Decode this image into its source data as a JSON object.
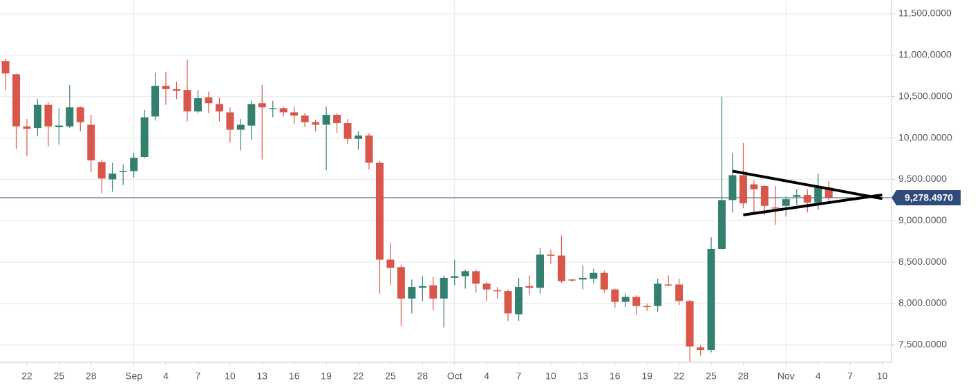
{
  "chart_data": {
    "type": "candlestick",
    "categories": [
      null,
      null,
      "22",
      null,
      null,
      "25",
      null,
      null,
      "28",
      null,
      null,
      null,
      "Sep",
      null,
      null,
      "4",
      null,
      null,
      "7",
      null,
      null,
      "10",
      null,
      null,
      "13",
      null,
      null,
      "16",
      null,
      null,
      "19",
      null,
      null,
      "22",
      null,
      null,
      "25",
      null,
      null,
      "28",
      null,
      null,
      "Oct",
      null,
      null,
      "4",
      null,
      null,
      "7",
      null,
      null,
      "10",
      null,
      null,
      "13",
      null,
      null,
      "16",
      null,
      null,
      "19",
      null,
      null,
      "22",
      null,
      null,
      "25",
      null,
      null,
      "28",
      null,
      null,
      null,
      "Nov",
      null,
      null,
      "4",
      null,
      null,
      "7",
      null,
      null,
      "10"
    ],
    "open": [
      10930,
      10770,
      10140,
      10120,
      10400,
      10130,
      10140,
      10370,
      10160,
      9710,
      9500,
      9590,
      9600,
      9770,
      10260,
      10630,
      10590,
      10580,
      10320,
      10490,
      10410,
      10310,
      10100,
      10150,
      10420,
      10360,
      10360,
      10310,
      10270,
      10190,
      10160,
      10280,
      10180,
      9990,
      10030,
      9700,
      8530,
      8440,
      8060,
      8190,
      8220,
      8060,
      8310,
      8330,
      8390,
      8240,
      8160,
      8150,
      7870,
      8210,
      8190,
      8590,
      8580,
      8290,
      8290,
      8300,
      8370,
      8170,
      8020,
      8080,
      7970,
      7970,
      8230,
      8230,
      8030,
      7470,
      7440,
      8660,
      9250,
      9550,
      9440,
      9420,
      9160,
      9180,
      9290,
      9310,
      9220,
      9400,
      null,
      null,
      null,
      null,
      null
    ],
    "high": [
      10960,
      10780,
      10230,
      10470,
      10430,
      10360,
      10640,
      10380,
      10280,
      9730,
      9700,
      9680,
      9820,
      10340,
      10790,
      10800,
      10680,
      10950,
      10580,
      10560,
      10490,
      10370,
      10230,
      10450,
      10640,
      10450,
      10380,
      10380,
      10300,
      10220,
      10380,
      10300,
      10230,
      10080,
      10060,
      9720,
      8730,
      8470,
      8290,
      8330,
      8320,
      8340,
      8530,
      8410,
      8410,
      8260,
      8200,
      8170,
      8310,
      8340,
      8670,
      8650,
      8820,
      8300,
      8460,
      8420,
      8400,
      8180,
      8120,
      8100,
      8000,
      8300,
      8340,
      8300,
      8040,
      7500,
      8800,
      10500,
      9820,
      9940,
      9490,
      9430,
      9420,
      9290,
      9380,
      9380,
      9570,
      9480,
      null,
      null,
      null,
      null,
      null
    ],
    "low": [
      10580,
      9870,
      9780,
      10020,
      9900,
      9920,
      10120,
      10080,
      9590,
      9330,
      9350,
      9430,
      9520,
      9760,
      10210,
      10400,
      10470,
      10200,
      10300,
      10300,
      10200,
      9940,
      9850,
      9980,
      9740,
      10250,
      10260,
      10170,
      10130,
      10080,
      9610,
      10060,
      9930,
      9860,
      9620,
      8120,
      8220,
      7730,
      7880,
      8030,
      7920,
      7710,
      8220,
      8180,
      8130,
      8030,
      8060,
      7790,
      7790,
      8100,
      8120,
      8480,
      8250,
      8260,
      8170,
      8240,
      8130,
      7950,
      7960,
      7870,
      7910,
      7900,
      8210,
      7980,
      7300,
      7370,
      7410,
      8650,
      9100,
      9150,
      9100,
      9070,
      8950,
      9050,
      9190,
      9100,
      9130,
      9200,
      null,
      null,
      null,
      null,
      null
    ],
    "close": [
      10780,
      10140,
      10110,
      10400,
      10140,
      10150,
      10370,
      10190,
      9730,
      9510,
      9570,
      9600,
      9760,
      10250,
      10630,
      10590,
      10570,
      10320,
      10480,
      10420,
      10320,
      10100,
      10160,
      10410,
      10370,
      10360,
      10310,
      10270,
      10190,
      10160,
      10280,
      10180,
      9990,
      10030,
      9700,
      8530,
      8430,
      8060,
      8200,
      8210,
      8060,
      8310,
      8330,
      8390,
      8240,
      8170,
      8150,
      7880,
      8200,
      8190,
      8590,
      8580,
      8270,
      8280,
      8310,
      8370,
      8170,
      8020,
      8080,
      7970,
      7960,
      8240,
      8220,
      8030,
      7480,
      7440,
      8660,
      9250,
      9550,
      9210,
      9380,
      9180,
      9150,
      9260,
      9310,
      9220,
      9400,
      9280,
      null,
      null,
      null,
      null,
      null
    ],
    "up_color": "#34806f",
    "down_color": "#d9574a",
    "lines": [
      {
        "color": "#000000",
        "values": [
          null,
          null,
          null,
          null,
          null,
          null,
          null,
          null,
          null,
          null,
          null,
          null,
          null,
          null,
          null,
          null,
          null,
          null,
          null,
          null,
          null,
          null,
          null,
          null,
          null,
          null,
          null,
          null,
          null,
          null,
          null,
          null,
          null,
          null,
          null,
          null,
          null,
          null,
          null,
          null,
          null,
          null,
          null,
          null,
          null,
          null,
          null,
          null,
          null,
          null,
          null,
          null,
          null,
          null,
          null,
          null,
          null,
          null,
          null,
          null,
          null,
          null,
          null,
          null,
          null,
          null,
          null,
          null,
          9600,
          9576,
          9552,
          9529,
          9505,
          9481,
          9457,
          9433,
          9410,
          9386,
          9362,
          9338,
          9314,
          9291,
          9267
        ]
      },
      {
        "color": "#000000",
        "values": [
          null,
          null,
          null,
          null,
          null,
          null,
          null,
          null,
          null,
          null,
          null,
          null,
          null,
          null,
          null,
          null,
          null,
          null,
          null,
          null,
          null,
          null,
          null,
          null,
          null,
          null,
          null,
          null,
          null,
          null,
          null,
          null,
          null,
          null,
          null,
          null,
          null,
          null,
          null,
          null,
          null,
          null,
          null,
          null,
          null,
          null,
          null,
          null,
          null,
          null,
          null,
          null,
          null,
          null,
          null,
          null,
          null,
          null,
          null,
          null,
          null,
          null,
          null,
          null,
          null,
          null,
          null,
          null,
          null,
          9070,
          9089,
          9107,
          9126,
          9145,
          9163,
          9182,
          9201,
          9219,
          9238,
          9257,
          9275,
          9294,
          9312
        ]
      }
    ],
    "last_price": {
      "value": 9278.497,
      "label": "9,278.4970",
      "color": "#2f4b7c"
    },
    "ylim": [
      7290,
      11667
    ],
    "yticks": [
      {
        "value": 7500,
        "label": "7,500.0000"
      },
      {
        "value": 8000,
        "label": "8,000.0000"
      },
      {
        "value": 8500,
        "label": "8,500.0000"
      },
      {
        "value": 9000,
        "label": "9,000.0000"
      },
      {
        "value": 9500,
        "label": "9,500.0000"
      },
      {
        "value": 10000,
        "label": "10,000.0000"
      },
      {
        "value": 10500,
        "label": "10,500.0000"
      },
      {
        "value": 11000,
        "label": "11,000.0000"
      },
      {
        "value": 11500,
        "label": "11,500.0000"
      }
    ],
    "grid": true
  }
}
